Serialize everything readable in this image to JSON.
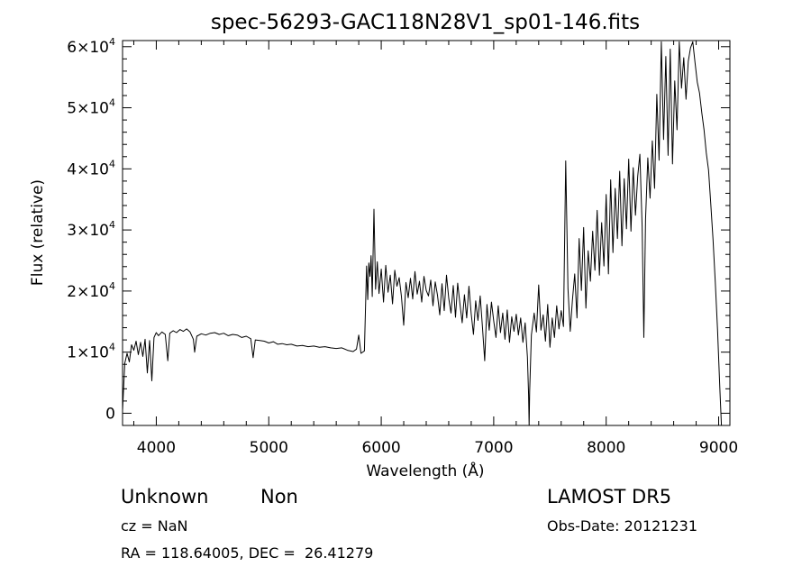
{
  "chart_data": {
    "type": "line",
    "title": "spec-56293-GAC118N28V1_sp01-146.fits",
    "xlabel": "Wavelength (Å)",
    "ylabel": "Flux (relative)",
    "xlim": [
      3700,
      9100
    ],
    "ylim": [
      -2000,
      61000
    ],
    "x_ticks": [
      4000,
      5000,
      6000,
      7000,
      8000,
      9000
    ],
    "y_ticks": [
      {
        "value": 0,
        "mantissa": "0",
        "exp": ""
      },
      {
        "value": 10000,
        "mantissa": "1×10",
        "exp": "4"
      },
      {
        "value": 20000,
        "mantissa": "2×10",
        "exp": "4"
      },
      {
        "value": 30000,
        "mantissa": "3×10",
        "exp": "4"
      },
      {
        "value": 40000,
        "mantissa": "4×10",
        "exp": "4"
      },
      {
        "value": 50000,
        "mantissa": "5×10",
        "exp": "4"
      },
      {
        "value": 60000,
        "mantissa": "6×10",
        "exp": "4"
      }
    ],
    "grid": false,
    "series": [
      {
        "color": "#000000",
        "points": [
          [
            3700,
            500
          ],
          [
            3720,
            8200
          ],
          [
            3740,
            9800
          ],
          [
            3760,
            8400
          ],
          [
            3780,
            11200
          ],
          [
            3800,
            10300
          ],
          [
            3820,
            11800
          ],
          [
            3840,
            9600
          ],
          [
            3860,
            11600
          ],
          [
            3880,
            9300
          ],
          [
            3900,
            12100
          ],
          [
            3920,
            6600
          ],
          [
            3940,
            11900
          ],
          [
            3960,
            5300
          ],
          [
            3980,
            12400
          ],
          [
            4000,
            13200
          ],
          [
            4020,
            12700
          ],
          [
            4050,
            13300
          ],
          [
            4080,
            12900
          ],
          [
            4102,
            8600
          ],
          [
            4120,
            13100
          ],
          [
            4150,
            13500
          ],
          [
            4180,
            13200
          ],
          [
            4210,
            13700
          ],
          [
            4240,
            13400
          ],
          [
            4270,
            13800
          ],
          [
            4300,
            13300
          ],
          [
            4330,
            12100
          ],
          [
            4341,
            10000
          ],
          [
            4360,
            12600
          ],
          [
            4400,
            13000
          ],
          [
            4440,
            12800
          ],
          [
            4480,
            13100
          ],
          [
            4520,
            13200
          ],
          [
            4560,
            12900
          ],
          [
            4600,
            13100
          ],
          [
            4640,
            12700
          ],
          [
            4680,
            12900
          ],
          [
            4720,
            12800
          ],
          [
            4760,
            12400
          ],
          [
            4800,
            12600
          ],
          [
            4840,
            12200
          ],
          [
            4861,
            9100
          ],
          [
            4880,
            12000
          ],
          [
            4920,
            11900
          ],
          [
            4960,
            11800
          ],
          [
            5000,
            11500
          ],
          [
            5040,
            11700
          ],
          [
            5080,
            11300
          ],
          [
            5120,
            11400
          ],
          [
            5160,
            11200
          ],
          [
            5200,
            11300
          ],
          [
            5250,
            11000
          ],
          [
            5300,
            11100
          ],
          [
            5350,
            10900
          ],
          [
            5400,
            11000
          ],
          [
            5450,
            10800
          ],
          [
            5500,
            10900
          ],
          [
            5550,
            10700
          ],
          [
            5600,
            10600
          ],
          [
            5650,
            10700
          ],
          [
            5700,
            10300
          ],
          [
            5750,
            10100
          ],
          [
            5780,
            10500
          ],
          [
            5800,
            12800
          ],
          [
            5820,
            9800
          ],
          [
            5850,
            10200
          ],
          [
            5870,
            24100
          ],
          [
            5880,
            18600
          ],
          [
            5890,
            24600
          ],
          [
            5900,
            22400
          ],
          [
            5910,
            25800
          ],
          [
            5920,
            19100
          ],
          [
            5935,
            33400
          ],
          [
            5950,
            20300
          ],
          [
            5965,
            24800
          ],
          [
            5980,
            19600
          ],
          [
            6000,
            23600
          ],
          [
            6020,
            18200
          ],
          [
            6040,
            24200
          ],
          [
            6060,
            19800
          ],
          [
            6080,
            22600
          ],
          [
            6100,
            17900
          ],
          [
            6120,
            23400
          ],
          [
            6140,
            20800
          ],
          [
            6160,
            22200
          ],
          [
            6180,
            19100
          ],
          [
            6200,
            14400
          ],
          [
            6220,
            21400
          ],
          [
            6240,
            18900
          ],
          [
            6260,
            22100
          ],
          [
            6280,
            18700
          ],
          [
            6300,
            23200
          ],
          [
            6320,
            19500
          ],
          [
            6340,
            21600
          ],
          [
            6360,
            18200
          ],
          [
            6380,
            22400
          ],
          [
            6400,
            20100
          ],
          [
            6420,
            19200
          ],
          [
            6440,
            21800
          ],
          [
            6460,
            17600
          ],
          [
            6480,
            21500
          ],
          [
            6500,
            19300
          ],
          [
            6520,
            16100
          ],
          [
            6540,
            21200
          ],
          [
            6560,
            16800
          ],
          [
            6580,
            22600
          ],
          [
            6600,
            18800
          ],
          [
            6620,
            16400
          ],
          [
            6640,
            20900
          ],
          [
            6660,
            15700
          ],
          [
            6680,
            21300
          ],
          [
            6700,
            17900
          ],
          [
            6720,
            14800
          ],
          [
            6740,
            19400
          ],
          [
            6760,
            15600
          ],
          [
            6780,
            20800
          ],
          [
            6800,
            16300
          ],
          [
            6820,
            12900
          ],
          [
            6840,
            18400
          ],
          [
            6860,
            15200
          ],
          [
            6880,
            19200
          ],
          [
            6900,
            14100
          ],
          [
            6920,
            8600
          ],
          [
            6940,
            17800
          ],
          [
            6960,
            13600
          ],
          [
            6980,
            18200
          ],
          [
            7000,
            15100
          ],
          [
            7020,
            12400
          ],
          [
            7040,
            17600
          ],
          [
            7060,
            13200
          ],
          [
            7080,
            16400
          ],
          [
            7100,
            12100
          ],
          [
            7120,
            16900
          ],
          [
            7140,
            11600
          ],
          [
            7160,
            15800
          ],
          [
            7180,
            13400
          ],
          [
            7200,
            16200
          ],
          [
            7220,
            12800
          ],
          [
            7240,
            15600
          ],
          [
            7260,
            11600
          ],
          [
            7280,
            14800
          ],
          [
            7300,
            9200
          ],
          [
            7310,
            3000
          ],
          [
            7315,
            -2000
          ],
          [
            7320,
            3600
          ],
          [
            7335,
            12800
          ],
          [
            7360,
            16400
          ],
          [
            7380,
            13300
          ],
          [
            7400,
            21000
          ],
          [
            7420,
            13600
          ],
          [
            7440,
            16100
          ],
          [
            7460,
            11800
          ],
          [
            7480,
            17800
          ],
          [
            7500,
            10800
          ],
          [
            7520,
            15600
          ],
          [
            7540,
            12400
          ],
          [
            7560,
            17600
          ],
          [
            7580,
            13800
          ],
          [
            7600,
            16800
          ],
          [
            7620,
            14200
          ],
          [
            7640,
            41300
          ],
          [
            7660,
            20400
          ],
          [
            7680,
            13400
          ],
          [
            7700,
            18600
          ],
          [
            7720,
            22800
          ],
          [
            7740,
            15600
          ],
          [
            7760,
            28600
          ],
          [
            7780,
            20100
          ],
          [
            7800,
            30400
          ],
          [
            7820,
            17200
          ],
          [
            7840,
            26600
          ],
          [
            7860,
            21600
          ],
          [
            7880,
            29800
          ],
          [
            7900,
            23400
          ],
          [
            7920,
            33200
          ],
          [
            7940,
            22600
          ],
          [
            7960,
            31200
          ],
          [
            7980,
            24100
          ],
          [
            8000,
            35800
          ],
          [
            8020,
            22800
          ],
          [
            8040,
            38200
          ],
          [
            8060,
            26300
          ],
          [
            8080,
            36800
          ],
          [
            8100,
            28600
          ],
          [
            8120,
            39600
          ],
          [
            8140,
            27400
          ],
          [
            8160,
            38400
          ],
          [
            8180,
            30200
          ],
          [
            8200,
            41600
          ],
          [
            8220,
            29800
          ],
          [
            8240,
            40200
          ],
          [
            8260,
            32400
          ],
          [
            8280,
            38800
          ],
          [
            8300,
            42400
          ],
          [
            8320,
            30600
          ],
          [
            8335,
            12400
          ],
          [
            8350,
            31800
          ],
          [
            8370,
            41800
          ],
          [
            8390,
            35200
          ],
          [
            8410,
            44600
          ],
          [
            8430,
            36800
          ],
          [
            8450,
            52200
          ],
          [
            8470,
            41400
          ],
          [
            8490,
            60800
          ],
          [
            8510,
            44800
          ],
          [
            8530,
            58400
          ],
          [
            8550,
            42200
          ],
          [
            8570,
            59600
          ],
          [
            8590,
            40800
          ],
          [
            8610,
            54400
          ],
          [
            8630,
            46400
          ],
          [
            8650,
            60800
          ],
          [
            8670,
            53200
          ],
          [
            8690,
            58200
          ],
          [
            8710,
            51400
          ],
          [
            8730,
            57600
          ],
          [
            8750,
            59800
          ],
          [
            8770,
            60800
          ],
          [
            8790,
            57400
          ],
          [
            8810,
            54200
          ],
          [
            8830,
            52400
          ],
          [
            8850,
            49200
          ],
          [
            8870,
            46400
          ],
          [
            8890,
            42600
          ],
          [
            8910,
            39800
          ],
          [
            8930,
            34200
          ],
          [
            8950,
            28400
          ],
          [
            8970,
            21400
          ],
          [
            8990,
            13600
          ],
          [
            9010,
            4200
          ],
          [
            9025,
            -2000
          ]
        ]
      }
    ]
  },
  "annotations": {
    "object_class": "Unknown",
    "subclass": "Non",
    "survey": "LAMOST DR5",
    "redshift": "cz = NaN",
    "obs_date": "Obs-Date: 20121231",
    "coordinates": "RA = 118.64005, DEC =  26.41279"
  }
}
